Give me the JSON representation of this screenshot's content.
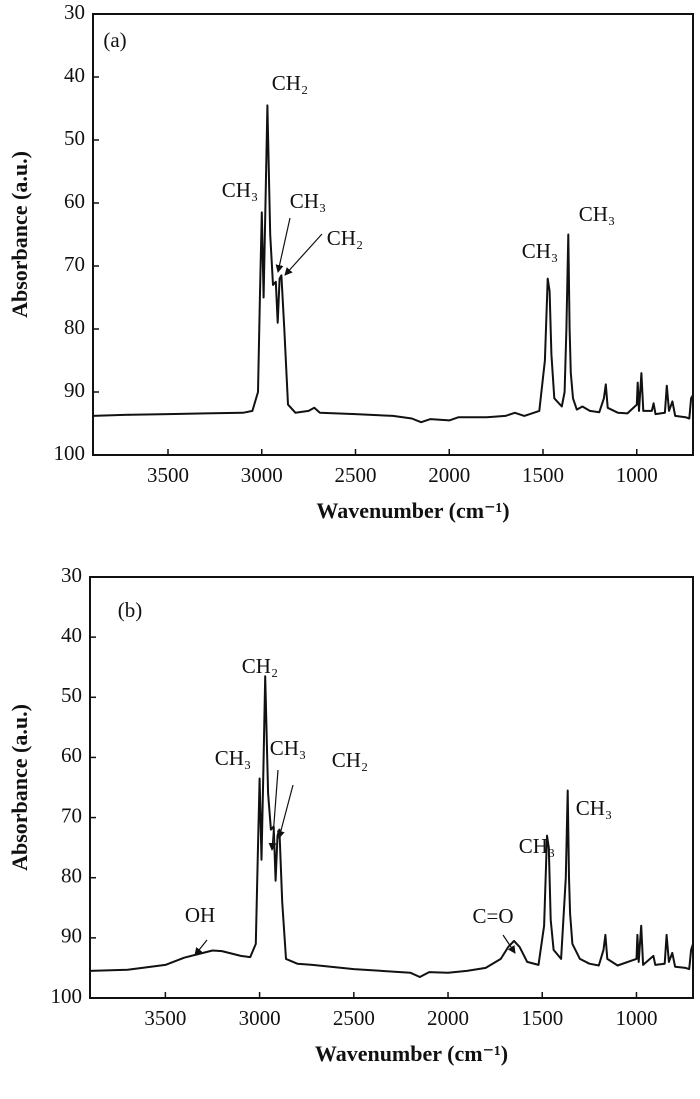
{
  "chart_data": [
    {
      "type": "line",
      "panel": "(a)",
      "xlabel": "Wavenumber (cm⁻¹)",
      "ylabel": "Absorbance (a.u.)",
      "xlim": [
        3900,
        700
      ],
      "ylim": [
        100,
        30
      ],
      "xticks": [
        3500,
        3000,
        2500,
        2000,
        1500,
        1000
      ],
      "yticks": [
        100,
        90,
        80,
        70,
        60,
        50,
        40,
        30
      ],
      "color": "#111111",
      "annotations": [
        "CH₂",
        "CH₃",
        "CH₃",
        "CH₂",
        "CH₃",
        "CH₃"
      ],
      "x": [
        3900,
        3700,
        3500,
        3300,
        3100,
        3050,
        3020,
        3010,
        3000,
        2990,
        2980,
        2970,
        2955,
        2940,
        2925,
        2915,
        2905,
        2895,
        2880,
        2860,
        2820,
        2750,
        2720,
        2690,
        2500,
        2300,
        2200,
        2150,
        2100,
        2000,
        1950,
        1800,
        1700,
        1650,
        1600,
        1520,
        1490,
        1475,
        1465,
        1455,
        1440,
        1400,
        1385,
        1375,
        1365,
        1358,
        1352,
        1340,
        1320,
        1290,
        1250,
        1200,
        1175,
        1165,
        1155,
        1100,
        1050,
        1000,
        995,
        988,
        975,
        965,
        920,
        910,
        900,
        850,
        840,
        828,
        810,
        795,
        740,
        720,
        710,
        700
      ],
      "values": [
        93.8,
        93.6,
        93.5,
        93.4,
        93.3,
        93,
        90,
        75,
        61.5,
        75,
        60,
        44.5,
        65,
        73,
        72.5,
        79,
        72,
        71.5,
        80,
        92,
        93.3,
        93,
        92.5,
        93.3,
        93.5,
        93.8,
        94.2,
        94.8,
        94.3,
        94.5,
        94,
        94,
        93.8,
        93.3,
        93.8,
        93,
        85,
        72,
        74,
        84,
        91,
        92.3,
        90,
        80,
        65,
        80,
        87,
        91,
        92.8,
        92.3,
        93,
        93.2,
        91,
        88.8,
        92.5,
        93.3,
        93.4,
        92,
        88.5,
        93,
        87,
        93,
        93,
        91.8,
        93.5,
        93.3,
        89,
        93,
        91.5,
        93.8,
        94,
        94.2,
        91,
        90.5
      ]
    },
    {
      "type": "line",
      "panel": "(b)",
      "xlabel": "Wavenumber (cm⁻¹)",
      "ylabel": "Absorbance (a.u.)",
      "xlim": [
        3900,
        700
      ],
      "ylim": [
        100,
        30
      ],
      "xticks": [
        3500,
        3000,
        2500,
        2000,
        1500,
        1000
      ],
      "yticks": [
        100,
        90,
        80,
        70,
        60,
        50,
        40,
        30
      ],
      "color": "#111111",
      "annotations": [
        "CH₂",
        "CH₃",
        "CH₃",
        "CH₂",
        "OH",
        "C=O",
        "CH₃",
        "CH₃"
      ],
      "x": [
        3900,
        3700,
        3500,
        3400,
        3300,
        3250,
        3200,
        3100,
        3050,
        3020,
        3010,
        3000,
        2990,
        2980,
        2970,
        2955,
        2940,
        2925,
        2915,
        2905,
        2895,
        2880,
        2860,
        2800,
        2720,
        2500,
        2200,
        2150,
        2100,
        2000,
        1900,
        1800,
        1720,
        1680,
        1650,
        1620,
        1580,
        1520,
        1490,
        1475,
        1465,
        1455,
        1440,
        1400,
        1375,
        1365,
        1358,
        1352,
        1340,
        1300,
        1250,
        1200,
        1175,
        1165,
        1155,
        1100,
        1000,
        995,
        988,
        975,
        965,
        910,
        900,
        850,
        840,
        828,
        810,
        795,
        740,
        720,
        710,
        700
      ],
      "values": [
        95.5,
        95.3,
        94.5,
        93.3,
        92.5,
        92.1,
        92.2,
        93,
        93.2,
        91,
        77,
        63.5,
        77,
        62,
        46.5,
        66,
        72,
        71.5,
        80.5,
        73,
        72,
        84,
        93.5,
        94.3,
        94.5,
        95.2,
        95.8,
        96.5,
        95.7,
        95.8,
        95.5,
        95,
        93.5,
        91.5,
        90.5,
        91.5,
        94,
        94.5,
        88,
        73,
        75,
        87,
        92,
        93.5,
        80,
        65.5,
        80,
        86,
        91,
        93.5,
        94.3,
        94.6,
        92,
        89.5,
        93.5,
        94.6,
        93.5,
        89.5,
        94,
        88,
        94.5,
        93,
        94.5,
        94.3,
        89.5,
        94,
        92.5,
        94.8,
        95,
        95.2,
        92,
        91
      ]
    }
  ]
}
